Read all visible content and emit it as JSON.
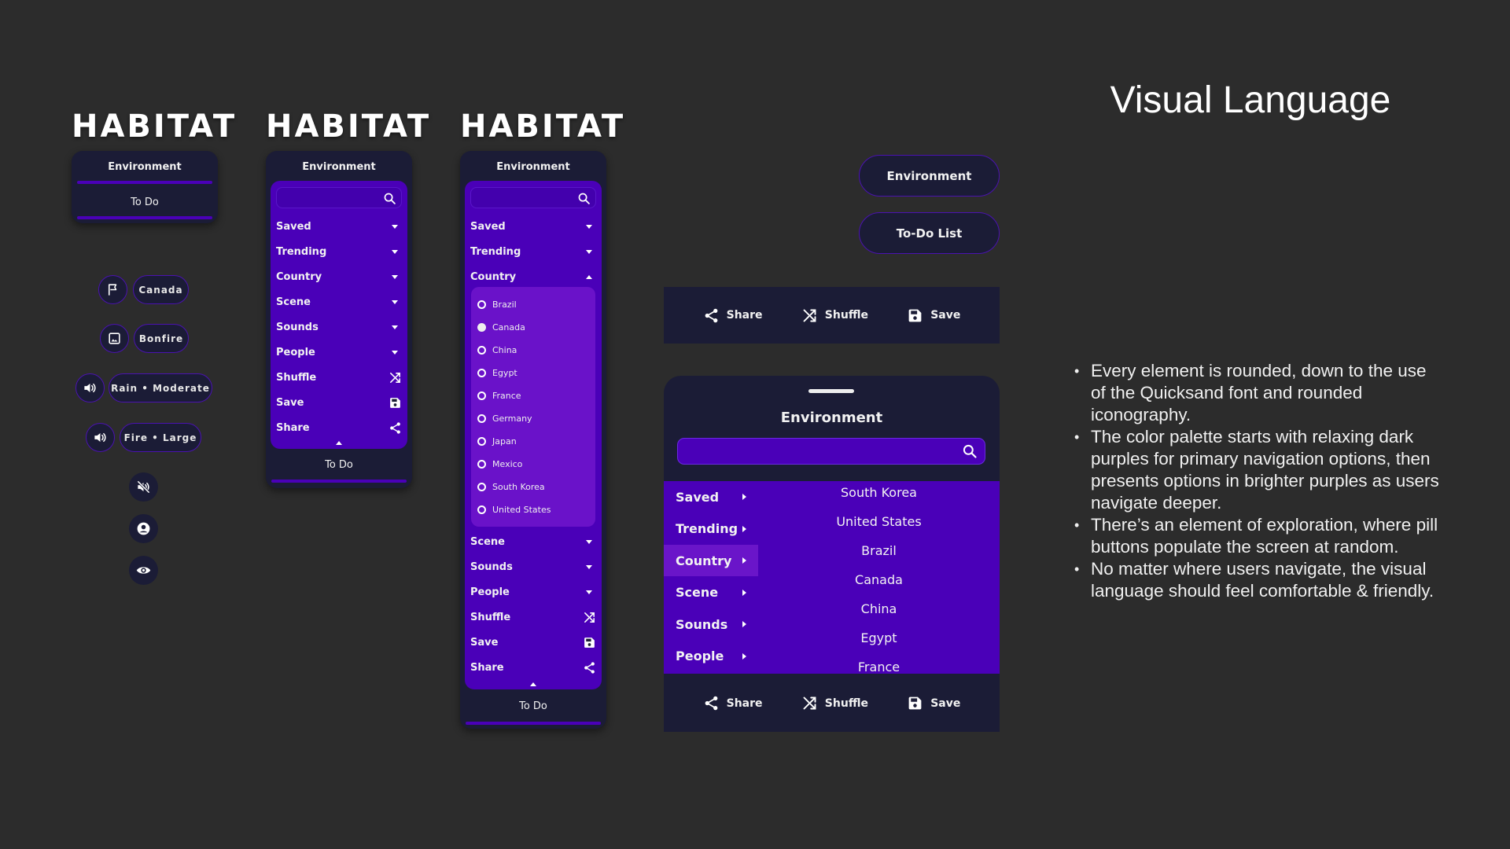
{
  "brand": "HABITAT",
  "colors": {
    "background": "#2c2c2c",
    "navy": "#1b1c36",
    "purple": "#4a00b8",
    "bright_purple": "#6a15c9"
  },
  "panel1": {
    "title": "Environment",
    "todo": "To Do"
  },
  "panel2": {
    "title": "Environment",
    "todo": "To Do",
    "search_icon": "search-icon",
    "menu": [
      {
        "label": "Saved",
        "icon": "caret-down"
      },
      {
        "label": "Trending",
        "icon": "caret-down"
      },
      {
        "label": "Country",
        "icon": "caret-down"
      },
      {
        "label": "Scene",
        "icon": "caret-down"
      },
      {
        "label": "Sounds",
        "icon": "caret-down"
      },
      {
        "label": "People",
        "icon": "caret-down"
      },
      {
        "label": "Shuffle",
        "icon": "shuffle"
      },
      {
        "label": "Save",
        "icon": "save"
      },
      {
        "label": "Share",
        "icon": "share"
      }
    ]
  },
  "panel3": {
    "title": "Environment",
    "todo": "To Do",
    "menu_top": [
      {
        "label": "Saved",
        "icon": "caret-down"
      },
      {
        "label": "Trending",
        "icon": "caret-down"
      },
      {
        "label": "Country",
        "icon": "caret-up"
      }
    ],
    "countries": [
      {
        "label": "Brazil",
        "selected": false
      },
      {
        "label": "Canada",
        "selected": true
      },
      {
        "label": "China",
        "selected": false
      },
      {
        "label": "Egypt",
        "selected": false
      },
      {
        "label": "France",
        "selected": false
      },
      {
        "label": "Germany",
        "selected": false
      },
      {
        "label": "Japan",
        "selected": false
      },
      {
        "label": "Mexico",
        "selected": false
      },
      {
        "label": "South Korea",
        "selected": false
      },
      {
        "label": "United States",
        "selected": false
      }
    ],
    "menu_bottom": [
      {
        "label": "Scene",
        "icon": "caret-down"
      },
      {
        "label": "Sounds",
        "icon": "caret-down"
      },
      {
        "label": "People",
        "icon": "caret-down"
      },
      {
        "label": "Shuffle",
        "icon": "shuffle"
      },
      {
        "label": "Save",
        "icon": "save"
      },
      {
        "label": "Share",
        "icon": "share"
      }
    ]
  },
  "pills": [
    {
      "icon": "flag",
      "label": "Canada"
    },
    {
      "icon": "image",
      "label": "Bonfire"
    },
    {
      "icon": "volume",
      "label": "Rain • Moderate"
    },
    {
      "icon": "volume",
      "label": "Fire • Large"
    }
  ],
  "icon_buttons": [
    "volume-mute",
    "account",
    "eye"
  ],
  "buttons": {
    "environment": "Environment",
    "todo_list": "To-Do List"
  },
  "toolbar": {
    "share": "Share",
    "shuffle": "Shuffle",
    "save": "Save"
  },
  "sheet": {
    "title": "Environment",
    "menu": [
      {
        "label": "Saved",
        "selected": false
      },
      {
        "label": "Trending",
        "selected": false
      },
      {
        "label": "Country",
        "selected": true
      },
      {
        "label": "Scene",
        "selected": false
      },
      {
        "label": "Sounds",
        "selected": false
      },
      {
        "label": "People",
        "selected": false
      }
    ],
    "countries": [
      "South Korea",
      "United States",
      "Brazil",
      "Canada",
      "China",
      "Egypt",
      "France"
    ]
  },
  "visual_language": {
    "title": "Visual Language",
    "bullets": [
      "Every element is rounded, down to the use of the Quicksand font and rounded iconography.",
      "The color palette starts with relaxing dark purples for primary navigation options, then presents options in brighter purples as users navigate deeper.",
      "There’s an element of exploration, where pill buttons populate the screen at random.",
      "No matter where users navigate, the visual language should feel comfortable & friendly."
    ]
  }
}
